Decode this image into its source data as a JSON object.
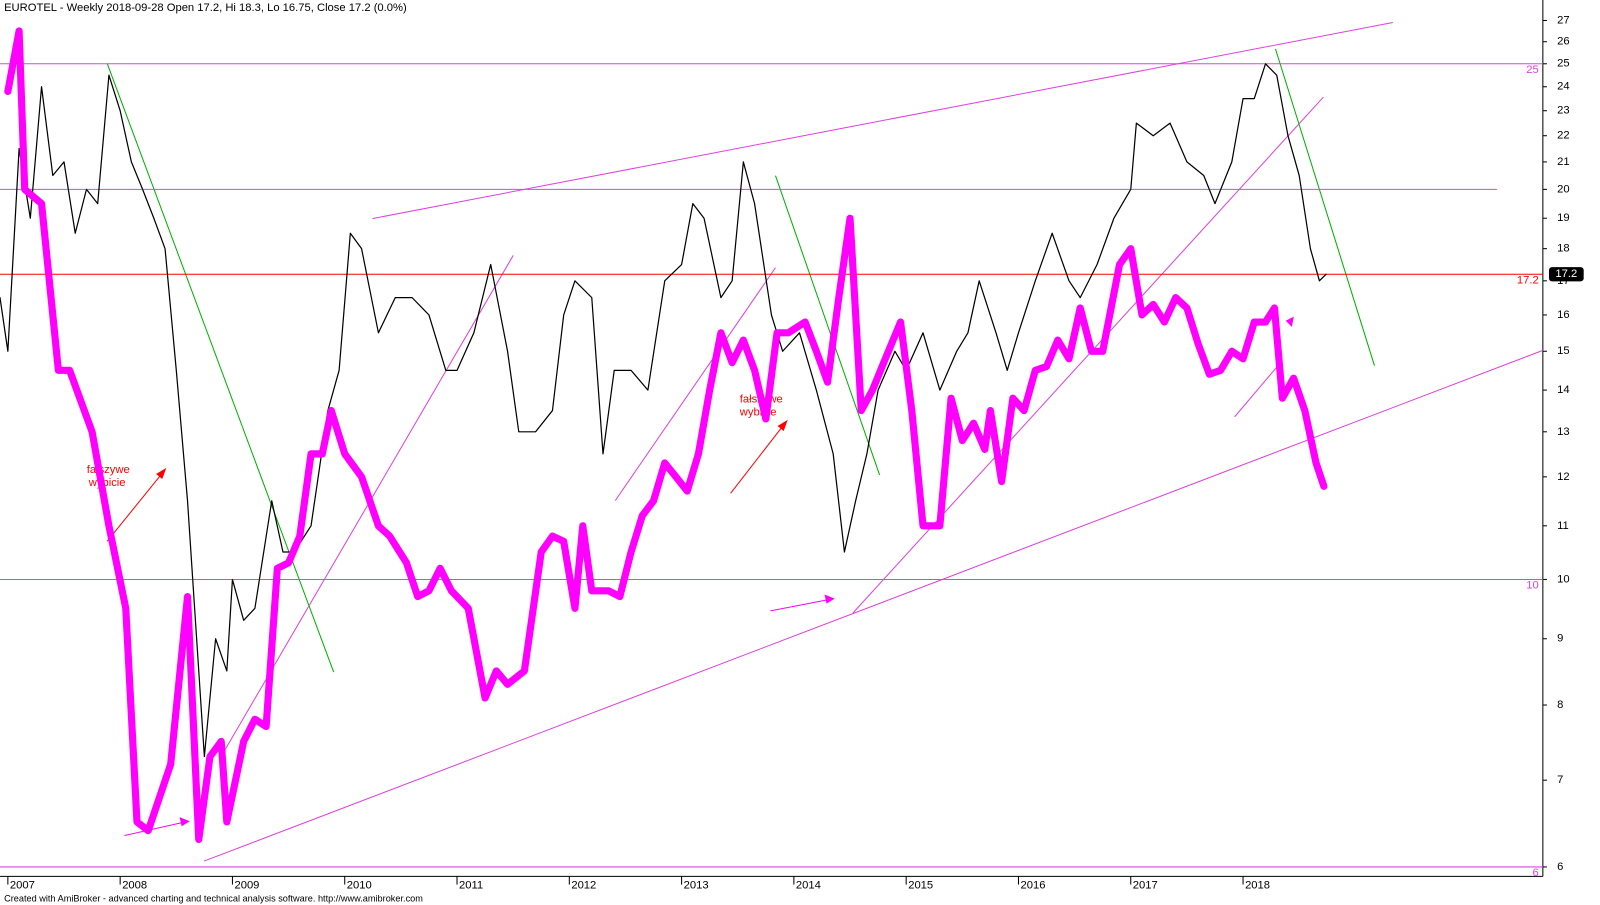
{
  "chart_data": {
    "type": "line",
    "title": "EUROTEL - Weekly 2018-09-28 Open 17.2, Hi 18.3, Lo 16.75, Close 17.2 (0.0%)",
    "footer": "Created with AmiBroker - advanced charting and technical analysis software. http://www.amibroker.com",
    "log_scale": true,
    "xlim": [
      2006.93,
      2020.67
    ],
    "xticks": [
      2007,
      2008,
      2009,
      2010,
      2011,
      2012,
      2013,
      2014,
      2015,
      2016,
      2017,
      2018
    ],
    "ylim": [
      5.9,
      28
    ],
    "yticks": [
      6,
      7,
      8,
      9,
      10,
      11,
      12,
      13,
      14,
      15,
      16,
      17,
      18,
      19,
      20,
      21,
      22,
      23,
      24,
      25,
      26,
      27
    ],
    "hlines": [
      {
        "value": 25,
        "label": "25",
        "color": "#e040e0"
      },
      {
        "value": 20,
        "color": "#e040e0"
      },
      {
        "value": 10,
        "label": "10",
        "color": "#e040e0"
      },
      {
        "value": 6,
        "label": "6",
        "color": "#e040e0"
      },
      {
        "value": 17.2,
        "label": "17.2",
        "color": "#ff0000"
      }
    ],
    "annotations": [
      "fałszywe",
      "wybicie",
      "fałszywe",
      "wybicie"
    ],
    "series": [
      {
        "color": "#000000",
        "width": 1.2,
        "x": [
          2006.93,
          2007.0,
          2007.1,
          2007.2,
          2007.3,
          2007.4,
          2007.5,
          2007.6,
          2007.7,
          2007.8,
          2007.9,
          2008.0,
          2008.1,
          2008.2,
          2008.3,
          2008.4,
          2008.5,
          2008.6,
          2008.7,
          2008.75,
          2008.85,
          2008.95,
          2009.0,
          2009.1,
          2009.2,
          2009.35,
          2009.45,
          2009.55,
          2009.7,
          2009.85,
          2009.95,
          2010.05,
          2010.15,
          2010.3,
          2010.45,
          2010.6,
          2010.75,
          2010.9,
          2011.0,
          2011.15,
          2011.3,
          2011.45,
          2011.55,
          2011.7,
          2011.85,
          2011.95,
          2012.05,
          2012.2,
          2012.3,
          2012.4,
          2012.55,
          2012.7,
          2012.85,
          2013.0,
          2013.1,
          2013.2,
          2013.35,
          2013.45,
          2013.55,
          2013.65,
          2013.8,
          2013.9,
          2014.05,
          2014.2,
          2014.35,
          2014.45,
          2014.55,
          2014.65,
          2014.75,
          2014.9,
          2015.0,
          2015.15,
          2015.3,
          2015.45,
          2015.55,
          2015.65,
          2015.8,
          2015.9,
          2016.0,
          2016.15,
          2016.3,
          2016.45,
          2016.55,
          2016.7,
          2016.85,
          2017.0,
          2017.05,
          2017.2,
          2017.35,
          2017.5,
          2017.65,
          2017.75,
          2017.9,
          2018.0,
          2018.1,
          2018.2,
          2018.3,
          2018.4,
          2018.5,
          2018.6,
          2018.68,
          2018.74
        ],
        "values": [
          16.5,
          15,
          21.5,
          19,
          24,
          20.5,
          21,
          18.5,
          20,
          19.5,
          24.5,
          23,
          21,
          20,
          19,
          18,
          14.5,
          11.5,
          8.5,
          7.3,
          9,
          8.5,
          10,
          9.3,
          9.5,
          11.5,
          10.5,
          10.5,
          11,
          13.5,
          14.5,
          18.5,
          18,
          15.5,
          16.5,
          16.5,
          16,
          14.5,
          14.5,
          15.5,
          17.5,
          15,
          13,
          13,
          13.5,
          16,
          17,
          16.5,
          12.5,
          14.5,
          14.5,
          14,
          17,
          17.5,
          19.5,
          19,
          16.5,
          17,
          21,
          19.5,
          16,
          15,
          15.5,
          14,
          12.5,
          10.5,
          11.5,
          12.5,
          14,
          15,
          14.5,
          15.5,
          14,
          15,
          15.5,
          17,
          15.5,
          14.5,
          15.5,
          17,
          18.5,
          17,
          16.5,
          17.5,
          19,
          20,
          22.5,
          22,
          22.5,
          21,
          20.5,
          19.5,
          21,
          23.5,
          23.5,
          25,
          24.5,
          22,
          20.5,
          18,
          17,
          17.2
        ]
      },
      {
        "color": "#ff00ff",
        "width": 7,
        "x": [
          2007.0,
          2007.1,
          2007.15,
          2007.3,
          2007.45,
          2007.55,
          2007.75,
          2007.9,
          2008.05,
          2008.15,
          2008.25,
          2008.45,
          2008.6,
          2008.7,
          2008.8,
          2008.9,
          2008.95,
          2009.1,
          2009.2,
          2009.3,
          2009.4,
          2009.5,
          2009.6,
          2009.7,
          2009.8,
          2009.88,
          2010.0,
          2010.15,
          2010.3,
          2010.4,
          2010.55,
          2010.65,
          2010.75,
          2010.85,
          2010.95,
          2011.1,
          2011.25,
          2011.35,
          2011.45,
          2011.6,
          2011.75,
          2011.85,
          2011.95,
          2012.05,
          2012.12,
          2012.2,
          2012.35,
          2012.45,
          2012.55,
          2012.65,
          2012.75,
          2012.85,
          2012.95,
          2013.05,
          2013.15,
          2013.25,
          2013.35,
          2013.45,
          2013.55,
          2013.65,
          2013.75,
          2013.85,
          2013.95,
          2014.1,
          2014.2,
          2014.3,
          2014.4,
          2014.5,
          2014.6,
          2014.7,
          2014.8,
          2014.95,
          2015.05,
          2015.15,
          2015.3,
          2015.4,
          2015.5,
          2015.6,
          2015.7,
          2015.75,
          2015.85,
          2015.95,
          2016.05,
          2016.15,
          2016.25,
          2016.35,
          2016.45,
          2016.55,
          2016.65,
          2016.75,
          2016.9,
          2017.0,
          2017.1,
          2017.2,
          2017.3,
          2017.4,
          2017.5,
          2017.6,
          2017.7,
          2017.8,
          2017.9,
          2018.0,
          2018.1,
          2018.2,
          2018.28,
          2018.35,
          2018.45,
          2018.55,
          2018.65,
          2018.72
        ],
        "values": [
          23.8,
          26.5,
          20,
          19.5,
          14.5,
          14.5,
          13,
          11,
          9.5,
          6.5,
          6.4,
          7.2,
          9.7,
          6.3,
          7.3,
          7.5,
          6.5,
          7.5,
          7.8,
          7.7,
          10.2,
          10.3,
          10.8,
          12.5,
          12.5,
          13.5,
          12.5,
          12,
          11,
          10.8,
          10.3,
          9.7,
          9.8,
          10.2,
          9.8,
          9.5,
          8.1,
          8.5,
          8.3,
          8.5,
          10.5,
          10.8,
          10.7,
          9.5,
          11,
          9.8,
          9.8,
          9.7,
          10.5,
          11.2,
          11.5,
          12.3,
          12,
          11.7,
          12.5,
          14,
          15.5,
          14.7,
          15.3,
          14.5,
          13.3,
          15.5,
          15.5,
          15.8,
          15,
          14.2,
          16.5,
          19,
          13.5,
          14,
          14.7,
          15.8,
          13.5,
          11,
          11,
          13.8,
          12.8,
          13.2,
          12.6,
          13.5,
          11.9,
          13.8,
          13.5,
          14.5,
          14.6,
          15.3,
          14.8,
          16.2,
          15,
          15,
          17.5,
          18,
          16,
          16.3,
          15.8,
          16.5,
          16.2,
          15.2,
          14.4,
          14.5,
          15,
          14.8,
          15.8,
          15.8,
          16.2,
          13.8,
          14.3,
          13.5,
          12.3,
          11.8
        ]
      }
    ]
  }
}
